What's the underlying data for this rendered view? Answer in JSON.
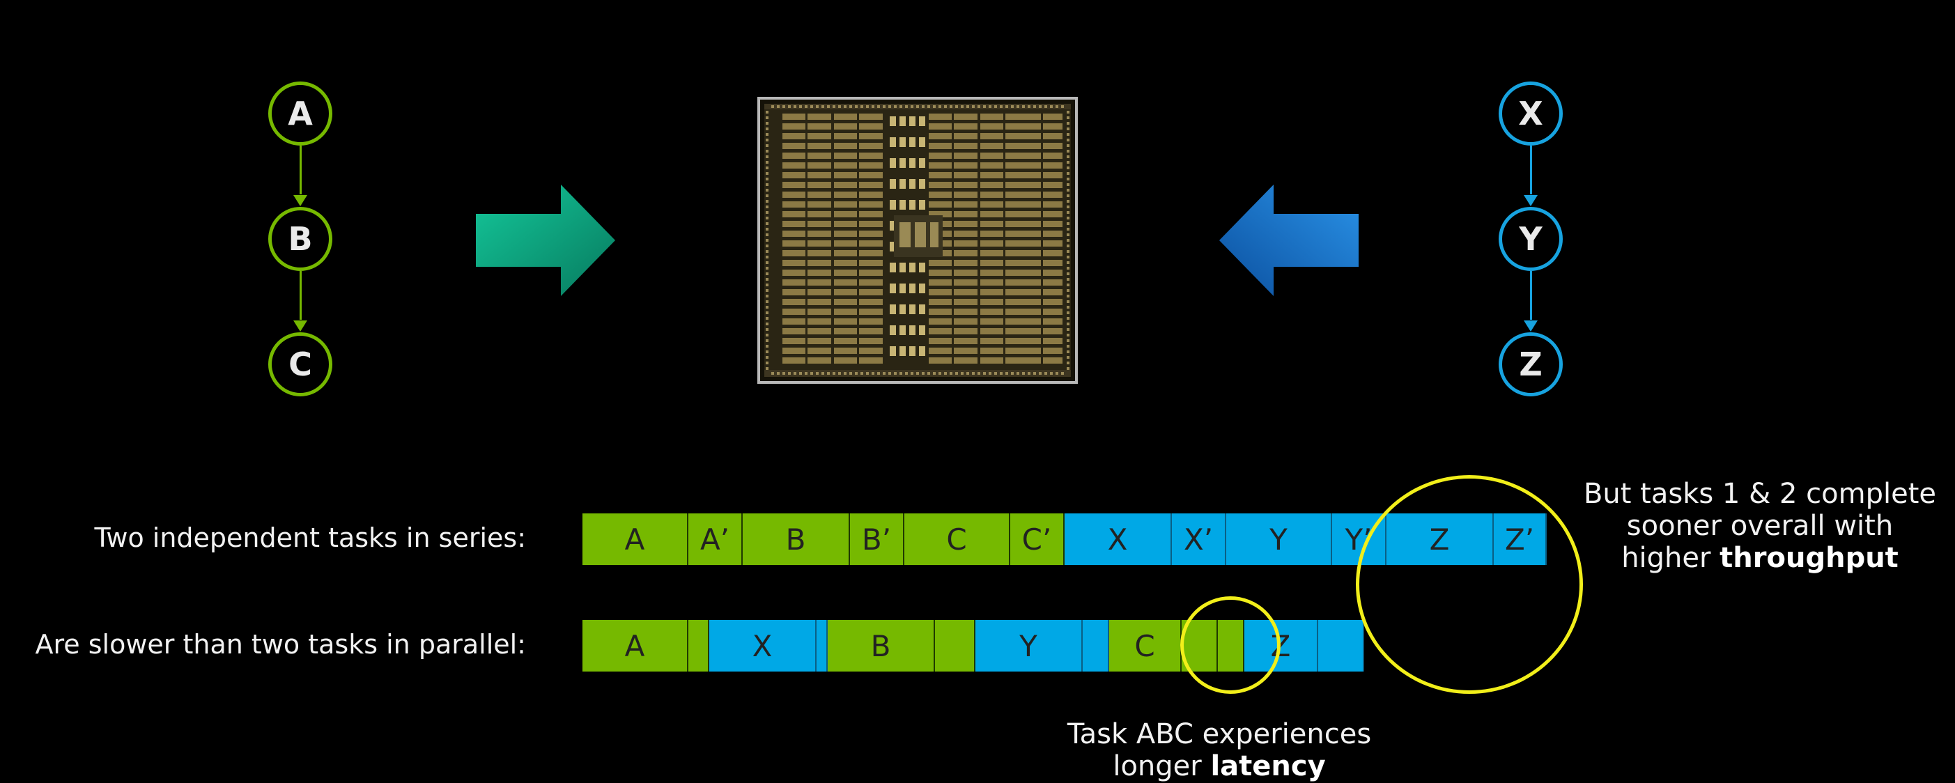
{
  "graph_left": {
    "nodes": [
      "A",
      "B",
      "C"
    ],
    "color": "#76b900"
  },
  "graph_right": {
    "nodes": [
      "X",
      "Y",
      "Z"
    ],
    "color": "#17a3e0"
  },
  "arrows": {
    "left_color": "#0fae82",
    "right_color": "#1570c8"
  },
  "rows": {
    "series": {
      "label": "Two independent tasks in series:",
      "segments": [
        {
          "t": "A",
          "c": "g"
        },
        {
          "t": "A’",
          "c": "g"
        },
        {
          "t": "B",
          "c": "g"
        },
        {
          "t": "B’",
          "c": "g"
        },
        {
          "t": "C",
          "c": "g"
        },
        {
          "t": "C’",
          "c": "g"
        },
        {
          "t": "X",
          "c": "b"
        },
        {
          "t": "X’",
          "c": "b"
        },
        {
          "t": "Y",
          "c": "b"
        },
        {
          "t": "Y’",
          "c": "b"
        },
        {
          "t": "Z",
          "c": "b"
        },
        {
          "t": "Z’",
          "c": "b"
        }
      ]
    },
    "parallel": {
      "label": "Are slower than two tasks in parallel:",
      "segments": [
        {
          "t": "A",
          "c": "g"
        },
        {
          "t": "",
          "c": "g"
        },
        {
          "t": "X",
          "c": "b"
        },
        {
          "t": "",
          "c": "b"
        },
        {
          "t": "B",
          "c": "g"
        },
        {
          "t": "",
          "c": "g"
        },
        {
          "t": "Y",
          "c": "b"
        },
        {
          "t": "",
          "c": "b"
        },
        {
          "t": "C",
          "c": "g"
        },
        {
          "t": "",
          "c": "g"
        },
        {
          "t": "",
          "c": "g"
        },
        {
          "t": "Z",
          "c": "b"
        },
        {
          "t": "",
          "c": "b"
        }
      ]
    }
  },
  "notes": {
    "throughput": {
      "line1": "But tasks 1 & 2 complete",
      "line2": "sooner overall with",
      "line3_pre": "higher ",
      "line3_bold": "throughput"
    },
    "latency": {
      "line1": "Task ABC experiences",
      "line2_pre": "longer ",
      "line2_bold": "latency"
    }
  },
  "highlight_color": "#f2ef1a"
}
